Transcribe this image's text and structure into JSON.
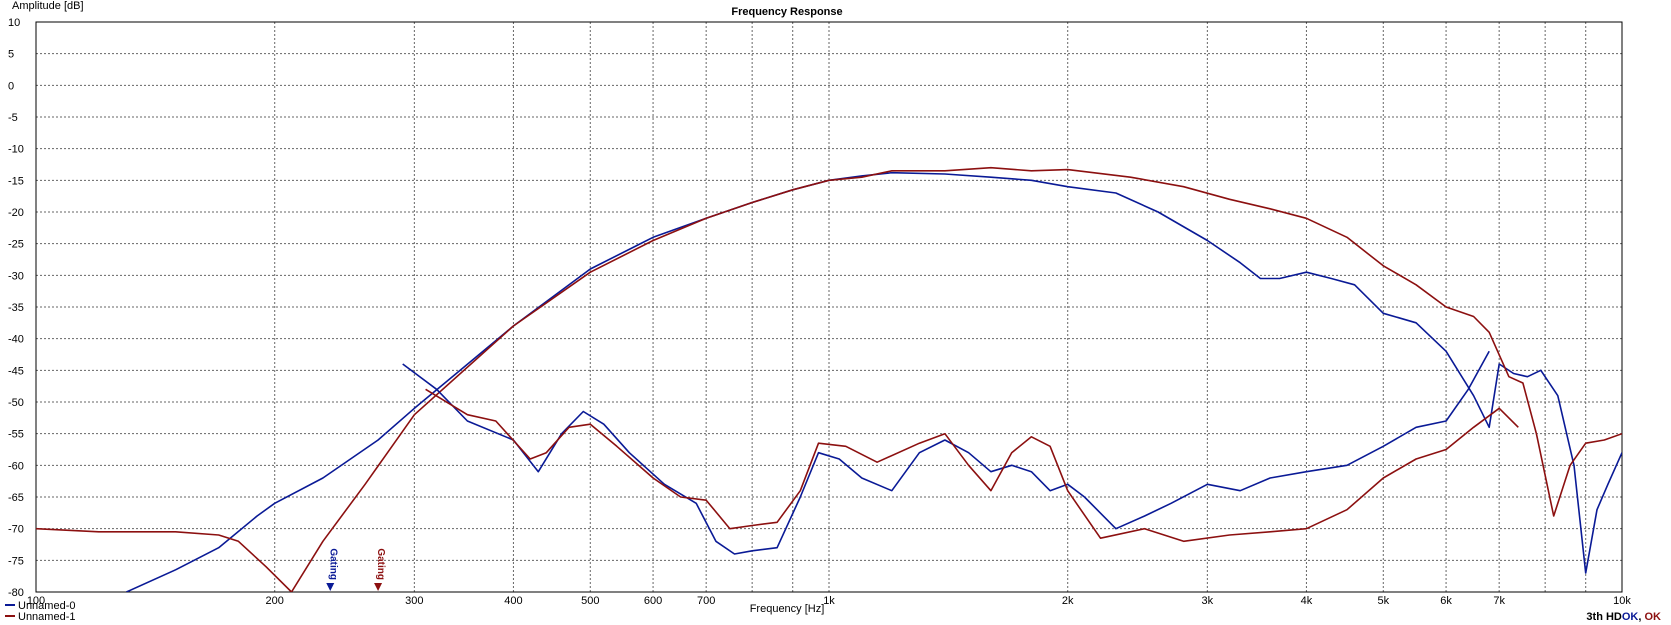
{
  "chart_data": {
    "type": "line",
    "title": "Frequency Response",
    "xlabel": "Frequency [Hz]",
    "ylabel": "Amplitude [dB]",
    "xscale": "log",
    "xlim": [
      100,
      10000
    ],
    "ylim": [
      -80,
      10
    ],
    "grid": true,
    "legend_position": "bottom-left",
    "x_tick_labels": [
      {
        "value": 100,
        "label": "100"
      },
      {
        "value": 200,
        "label": "200"
      },
      {
        "value": 300,
        "label": "300"
      },
      {
        "value": 400,
        "label": "400"
      },
      {
        "value": 500,
        "label": "500"
      },
      {
        "value": 600,
        "label": "600"
      },
      {
        "value": 700,
        "label": "700"
      },
      {
        "value": 1000,
        "label": "1k"
      },
      {
        "value": 2000,
        "label": "2k"
      },
      {
        "value": 3000,
        "label": "3k"
      },
      {
        "value": 4000,
        "label": "4k"
      },
      {
        "value": 5000,
        "label": "5k"
      },
      {
        "value": 6000,
        "label": "6k"
      },
      {
        "value": 7000,
        "label": "7k"
      },
      {
        "value": 10000,
        "label": "10k"
      }
    ],
    "y_ticks": [
      10,
      5,
      0,
      -5,
      -10,
      -15,
      -20,
      -25,
      -30,
      -35,
      -40,
      -45,
      -50,
      -55,
      -60,
      -65,
      -70,
      -75,
      -80
    ],
    "series": [
      {
        "name": "Unnamed-0",
        "color": "#0a1a96",
        "kind": "response",
        "points": [
          [
            130,
            -80
          ],
          [
            150,
            -76.5
          ],
          [
            170,
            -73
          ],
          [
            190,
            -68
          ],
          [
            200,
            -66
          ],
          [
            230,
            -62
          ],
          [
            270,
            -56
          ],
          [
            300,
            -51
          ],
          [
            400,
            -38
          ],
          [
            500,
            -29
          ],
          [
            600,
            -24
          ],
          [
            700,
            -21
          ],
          [
            800,
            -18.5
          ],
          [
            900,
            -16.5
          ],
          [
            1000,
            -15
          ],
          [
            1100,
            -14.3
          ],
          [
            1200,
            -13.8
          ],
          [
            1400,
            -14
          ],
          [
            1600,
            -14.5
          ],
          [
            1800,
            -15
          ],
          [
            2000,
            -16
          ],
          [
            2300,
            -17
          ],
          [
            2600,
            -20
          ],
          [
            3000,
            -24.5
          ],
          [
            3300,
            -28
          ],
          [
            3500,
            -30.5
          ],
          [
            3700,
            -30.5
          ],
          [
            4000,
            -29.5
          ],
          [
            4300,
            -30.5
          ],
          [
            4600,
            -31.5
          ],
          [
            5000,
            -36
          ],
          [
            5500,
            -37.5
          ],
          [
            6000,
            -42
          ],
          [
            6500,
            -49
          ],
          [
            6800,
            -54
          ],
          [
            7000,
            -44
          ],
          [
            7300,
            -45.5
          ],
          [
            7600,
            -46
          ],
          [
            7900,
            -45
          ],
          [
            8300,
            -49
          ],
          [
            8700,
            -60
          ],
          [
            9000,
            -77
          ],
          [
            9300,
            -67
          ],
          [
            9600,
            -63
          ],
          [
            10000,
            -58
          ]
        ]
      },
      {
        "name": "Unnamed-1",
        "color": "#8c1010",
        "kind": "response",
        "points": [
          [
            100,
            -70
          ],
          [
            120,
            -70.5
          ],
          [
            150,
            -70.5
          ],
          [
            170,
            -71
          ],
          [
            180,
            -72
          ],
          [
            195,
            -76
          ],
          [
            210,
            -80
          ],
          [
            230,
            -72
          ],
          [
            260,
            -63
          ],
          [
            300,
            -52
          ],
          [
            400,
            -38
          ],
          [
            500,
            -29.5
          ],
          [
            600,
            -24.5
          ],
          [
            700,
            -21
          ],
          [
            800,
            -18.5
          ],
          [
            900,
            -16.5
          ],
          [
            1000,
            -15
          ],
          [
            1100,
            -14.5
          ],
          [
            1200,
            -13.5
          ],
          [
            1400,
            -13.5
          ],
          [
            1600,
            -13
          ],
          [
            1800,
            -13.5
          ],
          [
            2000,
            -13.3
          ],
          [
            2400,
            -14.5
          ],
          [
            2800,
            -16
          ],
          [
            3200,
            -18
          ],
          [
            3600,
            -19.5
          ],
          [
            4000,
            -21
          ],
          [
            4500,
            -24
          ],
          [
            5000,
            -28.5
          ],
          [
            5500,
            -31.5
          ],
          [
            6000,
            -35
          ],
          [
            6500,
            -36.5
          ],
          [
            6800,
            -39
          ],
          [
            7200,
            -46
          ],
          [
            7500,
            -47
          ],
          [
            7800,
            -55
          ],
          [
            8200,
            -68
          ],
          [
            8600,
            -60
          ],
          [
            9000,
            -56.5
          ],
          [
            9500,
            -56
          ],
          [
            10000,
            -55
          ]
        ]
      },
      {
        "name": "Unnamed-0",
        "color": "#0a1a96",
        "kind": "distortion",
        "points": [
          [
            290,
            -44
          ],
          [
            320,
            -48
          ],
          [
            350,
            -53
          ],
          [
            400,
            -56
          ],
          [
            430,
            -61
          ],
          [
            460,
            -55
          ],
          [
            490,
            -51.5
          ],
          [
            520,
            -53.5
          ],
          [
            560,
            -58
          ],
          [
            620,
            -63
          ],
          [
            680,
            -66
          ],
          [
            720,
            -72
          ],
          [
            760,
            -74
          ],
          [
            800,
            -73.5
          ],
          [
            860,
            -73
          ],
          [
            920,
            -65
          ],
          [
            970,
            -58
          ],
          [
            1030,
            -59
          ],
          [
            1100,
            -62
          ],
          [
            1200,
            -64
          ],
          [
            1300,
            -58
          ],
          [
            1400,
            -56
          ],
          [
            1500,
            -58
          ],
          [
            1600,
            -61
          ],
          [
            1700,
            -60
          ],
          [
            1800,
            -61
          ],
          [
            1900,
            -64
          ],
          [
            2000,
            -63
          ],
          [
            2100,
            -65
          ],
          [
            2300,
            -70
          ],
          [
            2500,
            -68
          ],
          [
            2700,
            -66
          ],
          [
            3000,
            -63
          ],
          [
            3300,
            -64
          ],
          [
            3600,
            -62
          ],
          [
            4000,
            -61
          ],
          [
            4500,
            -60
          ],
          [
            5000,
            -57
          ],
          [
            5500,
            -54
          ],
          [
            6000,
            -53
          ],
          [
            6400,
            -48
          ],
          [
            6800,
            -42
          ]
        ]
      },
      {
        "name": "Unnamed-1",
        "color": "#8c1010",
        "kind": "distortion",
        "points": [
          [
            310,
            -48
          ],
          [
            350,
            -52
          ],
          [
            380,
            -53
          ],
          [
            420,
            -59
          ],
          [
            440,
            -58
          ],
          [
            470,
            -54
          ],
          [
            500,
            -53.5
          ],
          [
            540,
            -57
          ],
          [
            600,
            -62
          ],
          [
            650,
            -65
          ],
          [
            700,
            -65.5
          ],
          [
            750,
            -70
          ],
          [
            800,
            -69.5
          ],
          [
            860,
            -69
          ],
          [
            920,
            -64
          ],
          [
            970,
            -56.5
          ],
          [
            1050,
            -57
          ],
          [
            1150,
            -59.5
          ],
          [
            1300,
            -56.5
          ],
          [
            1400,
            -55
          ],
          [
            1500,
            -60
          ],
          [
            1600,
            -64
          ],
          [
            1700,
            -58
          ],
          [
            1800,
            -55.5
          ],
          [
            1900,
            -57
          ],
          [
            2000,
            -64
          ],
          [
            2200,
            -71.5
          ],
          [
            2500,
            -70
          ],
          [
            2800,
            -72
          ],
          [
            3200,
            -71
          ],
          [
            3600,
            -70.5
          ],
          [
            4000,
            -70
          ],
          [
            4500,
            -67
          ],
          [
            5000,
            -62
          ],
          [
            5500,
            -59
          ],
          [
            6000,
            -57.5
          ],
          [
            6500,
            -54
          ],
          [
            7000,
            -51
          ],
          [
            7400,
            -54
          ]
        ]
      }
    ],
    "markers": [
      {
        "label": "Gating",
        "x": 235,
        "color": "#0a1a96"
      },
      {
        "label": "Gating",
        "x": 270,
        "color": "#8c1010"
      }
    ],
    "status_text": {
      "prefix": "3th HD",
      "ok1": "OK",
      "separator": ", ",
      "ok2": "OK"
    }
  }
}
